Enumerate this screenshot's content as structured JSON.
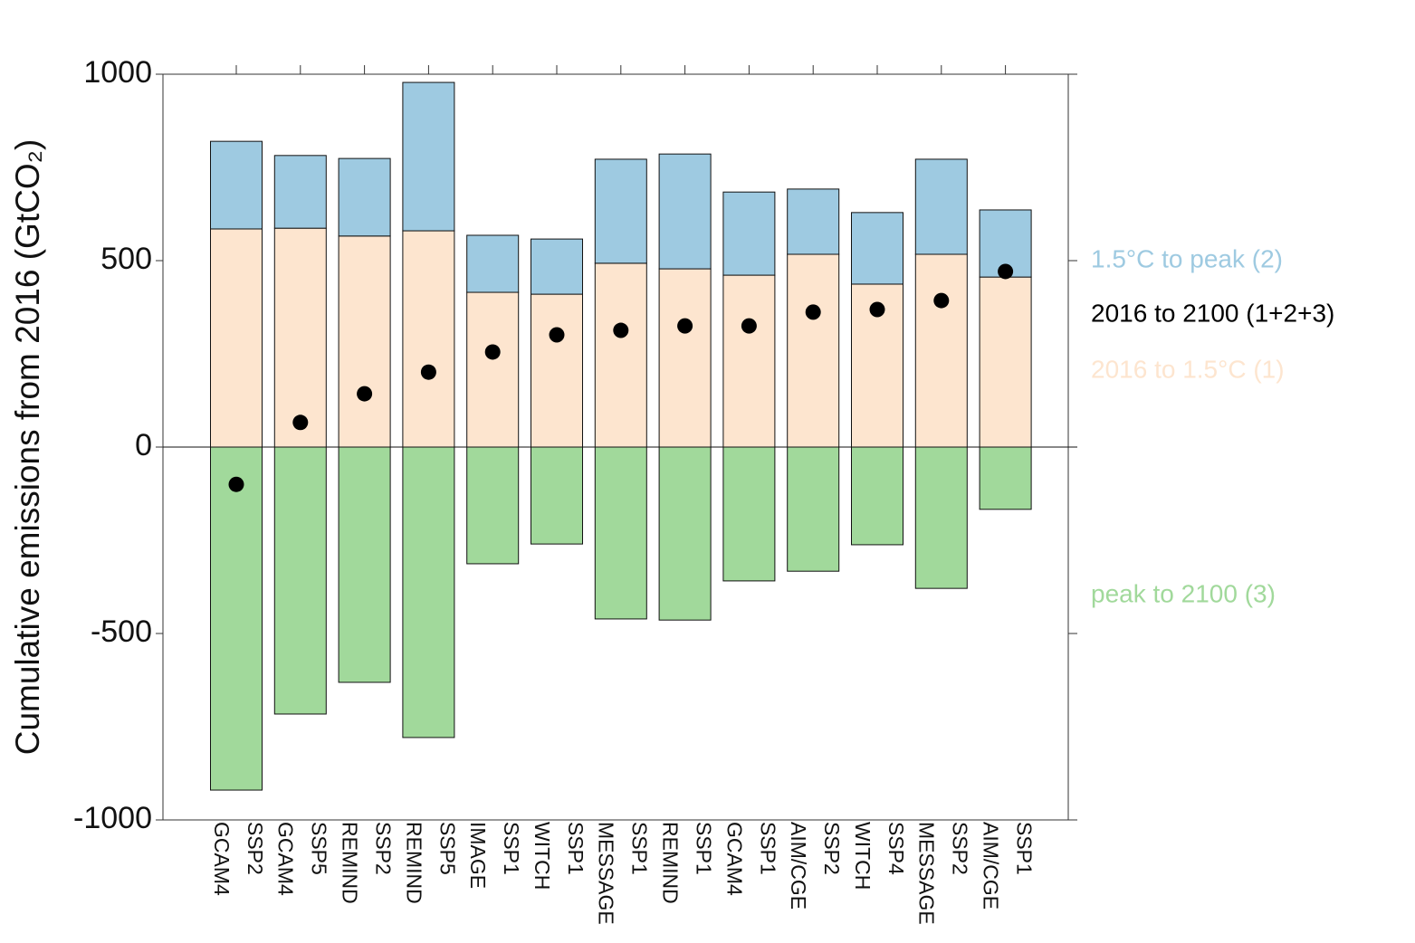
{
  "chart_data": {
    "type": "bar",
    "stacked": true,
    "y_label": "Cumulative emissions from 2016 (GtCO₂)",
    "categories": [
      [
        "GCAM4",
        "SSP2"
      ],
      [
        "GCAM4",
        "SSP5"
      ],
      [
        "REMIND",
        "SSP2"
      ],
      [
        "REMIND",
        "SSP5"
      ],
      [
        "IMAGE",
        "SSP1"
      ],
      [
        "WITCH",
        "SSP1"
      ],
      [
        "MESSAGE",
        "SSP1"
      ],
      [
        "REMIND",
        "SSP1"
      ],
      [
        "GCAM4",
        "SSP1"
      ],
      [
        "AIM/CGE",
        "SSP2"
      ],
      [
        "WITCH",
        "SSP4"
      ],
      [
        "MESSAGE",
        "SSP2"
      ],
      [
        "AIM/CGE",
        "SSP1"
      ]
    ],
    "series": [
      {
        "name": "2016 to 1.5°C (1)",
        "color": "#fde5cf",
        "mark": "bar",
        "values": [
          585,
          587,
          566,
          580,
          415,
          410,
          493,
          478,
          461,
          517,
          437,
          517,
          456
        ]
      },
      {
        "name": "1.5°C to peak (2)",
        "color": "#9ecae1",
        "mark": "bar",
        "values": [
          235,
          195,
          208,
          398,
          153,
          148,
          279,
          308,
          223,
          175,
          192,
          255,
          180
        ]
      },
      {
        "name": "peak to 2100 (3)",
        "color": "#a1d99b",
        "mark": "bar",
        "values": [
          -920,
          -716,
          -631,
          -779,
          -313,
          -260,
          -461,
          -464,
          -359,
          -333,
          -262,
          -379,
          -167
        ]
      },
      {
        "name": "2016 to 2100 (1+2+3)",
        "color": "#000000",
        "mark": "dot",
        "values": [
          -100,
          66,
          143,
          201,
          255,
          301,
          313,
          325,
          325,
          362,
          369,
          393,
          471
        ]
      }
    ],
    "ylim": [
      -1000,
      1000
    ],
    "yticks": [
      -1000,
      -500,
      0,
      500,
      1000
    ]
  }
}
